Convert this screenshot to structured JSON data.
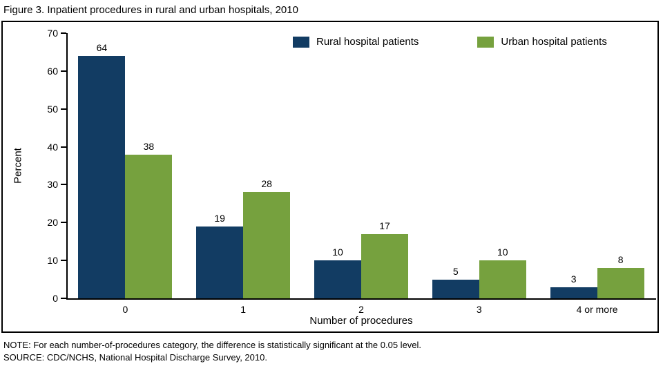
{
  "title": "Figure 3. Inpatient procedures in rural and urban hospitals, 2010",
  "note": "NOTE: For each number-of-procedures category, the difference is statistically significant at the 0.05 level.",
  "source": "SOURCE: CDC/NCHS, National Hospital Discharge Survey, 2010.",
  "chart_data": {
    "type": "bar",
    "title": "Figure 3. Inpatient procedures in rural and urban hospitals, 2010",
    "categories": [
      "0",
      "1",
      "2",
      "3",
      "4 or more"
    ],
    "series": [
      {
        "name": "Rural hospital patients",
        "color": "#123C63",
        "values": [
          64,
          19,
          10,
          5,
          3
        ]
      },
      {
        "name": "Urban hospital patients",
        "color": "#76A13E",
        "values": [
          38,
          28,
          17,
          10,
          8
        ]
      }
    ],
    "xlabel": "Number of procedures",
    "ylabel": "Percent",
    "ylim": [
      0,
      70
    ],
    "ytick_step": 10,
    "grid": false,
    "legend_position": "top-inside"
  }
}
